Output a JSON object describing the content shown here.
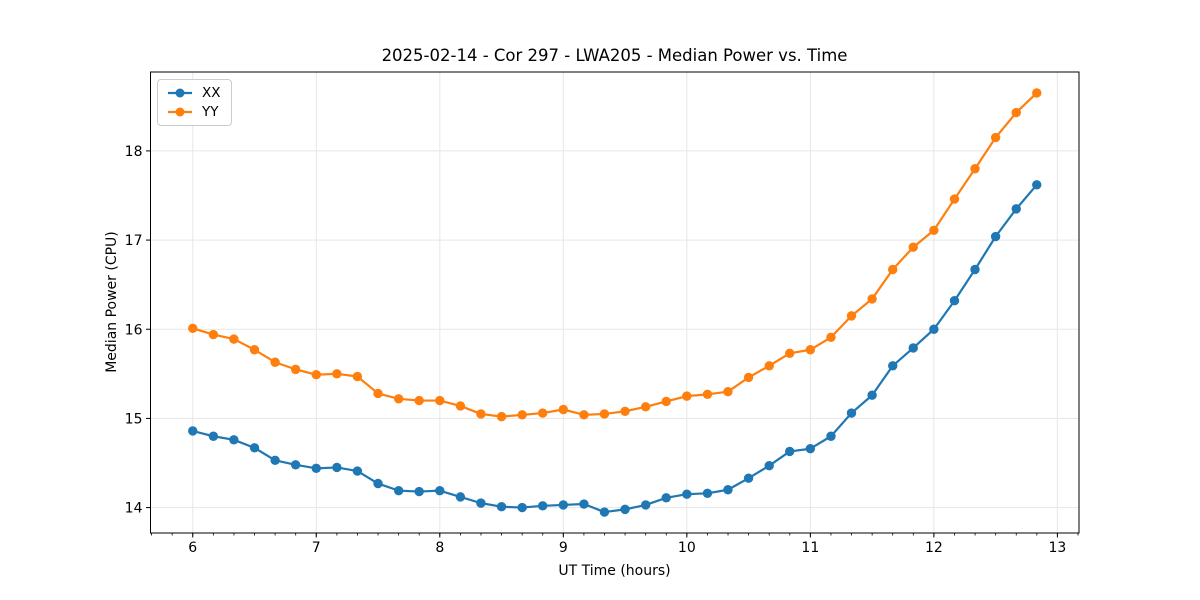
{
  "figure": {
    "background": "#ffffff"
  },
  "chart_data": {
    "type": "line",
    "title": "2025-02-14 - Cor 297 - LWA205 - Median Power vs. Time",
    "xlabel": "UT Time (hours)",
    "ylabel": "Median Power (CPU)",
    "xlim": [
      5.658,
      13.175
    ],
    "ylim": [
      13.715,
      18.885
    ],
    "xticks": [
      6,
      7,
      8,
      9,
      10,
      11,
      12,
      13
    ],
    "yticks": [
      14,
      15,
      16,
      17,
      18
    ],
    "x_minor_tick_step": 0.16667,
    "grid": true,
    "grid_color": "#e7e7e7",
    "spine_color": "#000000",
    "legend_position": "upper-left",
    "x": [
      6.0,
      6.167,
      6.333,
      6.5,
      6.667,
      6.833,
      7.0,
      7.167,
      7.333,
      7.5,
      7.667,
      7.833,
      8.0,
      8.167,
      8.333,
      8.5,
      8.667,
      8.833,
      9.0,
      9.167,
      9.333,
      9.5,
      9.667,
      9.833,
      10.0,
      10.167,
      10.333,
      10.5,
      10.667,
      10.833,
      11.0,
      11.167,
      11.333,
      11.5,
      11.667,
      11.833,
      12.0,
      12.167,
      12.333,
      12.5,
      12.667,
      12.833
    ],
    "series": [
      {
        "name": "XX",
        "color": "#1f77b4",
        "values": [
          14.86,
          14.8,
          14.76,
          14.67,
          14.53,
          14.48,
          14.44,
          14.45,
          14.41,
          14.27,
          14.19,
          14.18,
          14.19,
          14.12,
          14.05,
          14.01,
          14.0,
          14.02,
          14.03,
          14.04,
          13.95,
          13.98,
          14.03,
          14.11,
          14.15,
          14.16,
          14.2,
          14.33,
          14.47,
          14.63,
          14.66,
          14.8,
          15.06,
          15.26,
          15.59,
          15.79,
          16.0,
          16.32,
          16.67,
          17.04,
          17.35,
          17.62
        ]
      },
      {
        "name": "YY",
        "color": "#ff7f0e",
        "values": [
          16.01,
          15.94,
          15.89,
          15.77,
          15.63,
          15.55,
          15.49,
          15.5,
          15.47,
          15.28,
          15.22,
          15.2,
          15.2,
          15.14,
          15.05,
          15.02,
          15.04,
          15.06,
          15.1,
          15.04,
          15.05,
          15.08,
          15.13,
          15.19,
          15.25,
          15.27,
          15.3,
          15.46,
          15.59,
          15.73,
          15.77,
          15.91,
          16.15,
          16.34,
          16.67,
          16.92,
          17.11,
          17.46,
          17.8,
          18.15,
          18.43,
          18.65
        ]
      }
    ]
  }
}
